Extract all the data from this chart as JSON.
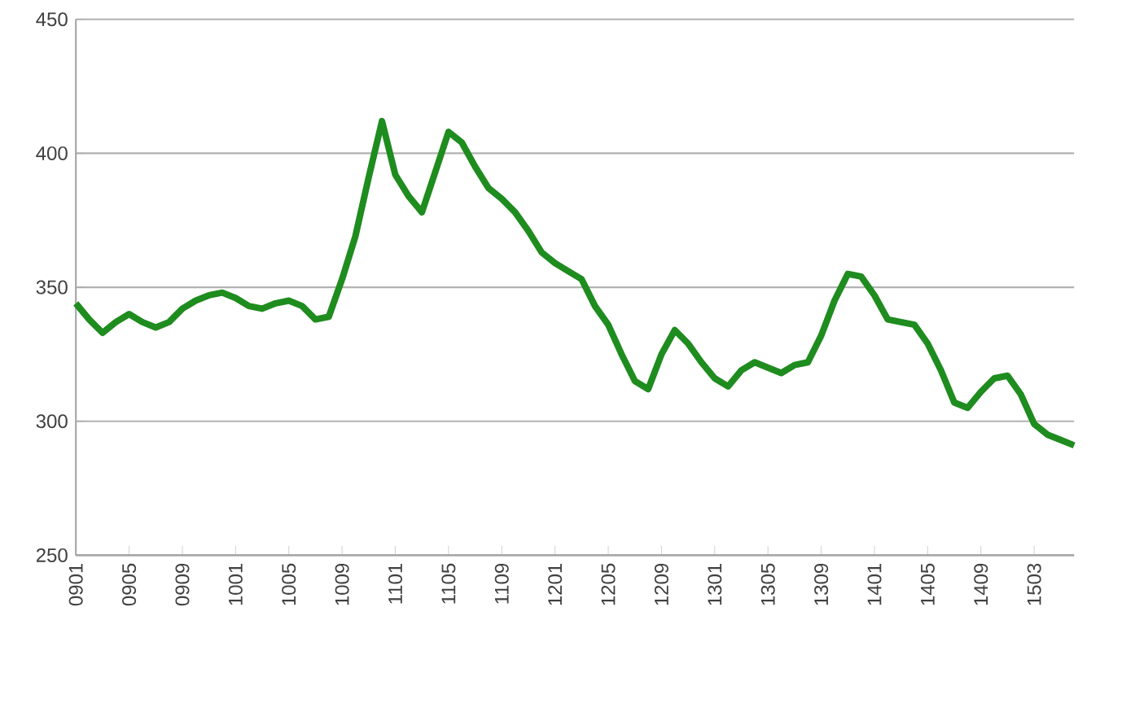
{
  "chart_data": {
    "type": "line",
    "categories": [
      "0901",
      null,
      null,
      null,
      "0905",
      null,
      null,
      null,
      "0909",
      null,
      null,
      null,
      "1001",
      null,
      null,
      null,
      "1005",
      null,
      null,
      null,
      "1009",
      null,
      null,
      null,
      "1101",
      null,
      null,
      null,
      "1105",
      null,
      null,
      null,
      "1109",
      null,
      null,
      null,
      "1201",
      null,
      null,
      null,
      "1205",
      null,
      null,
      null,
      "1209",
      null,
      null,
      null,
      "1301",
      null,
      null,
      null,
      "1305",
      null,
      null,
      null,
      "1309",
      null,
      null,
      null,
      "1401",
      null,
      null,
      null,
      "1405",
      null,
      null,
      null,
      "1409",
      null,
      null,
      null,
      "1503",
      null,
      null,
      null
    ],
    "series": [
      {
        "color": "#1e8c1e",
        "values": [
          344,
          338,
          333,
          337,
          340,
          337,
          335,
          337,
          342,
          345,
          347,
          348,
          346,
          343,
          342,
          344,
          345,
          343,
          338,
          339,
          353,
          369,
          391,
          412,
          392,
          384,
          378,
          393,
          408,
          404,
          395,
          387,
          383,
          378,
          371,
          363,
          359,
          356,
          353,
          343,
          336,
          325,
          315,
          312,
          325,
          334,
          329,
          322,
          316,
          313,
          319,
          322,
          320,
          318,
          321,
          322,
          332,
          345,
          355,
          354,
          347,
          338,
          337,
          336,
          329,
          319,
          307,
          305,
          311,
          316,
          317,
          310,
          299,
          295,
          293,
          291
        ]
      }
    ],
    "ylim": [
      250,
      450
    ],
    "yticks": [
      250,
      300,
      350,
      400,
      450
    ],
    "grid": "y",
    "marker": "none",
    "line_style": "solid"
  }
}
